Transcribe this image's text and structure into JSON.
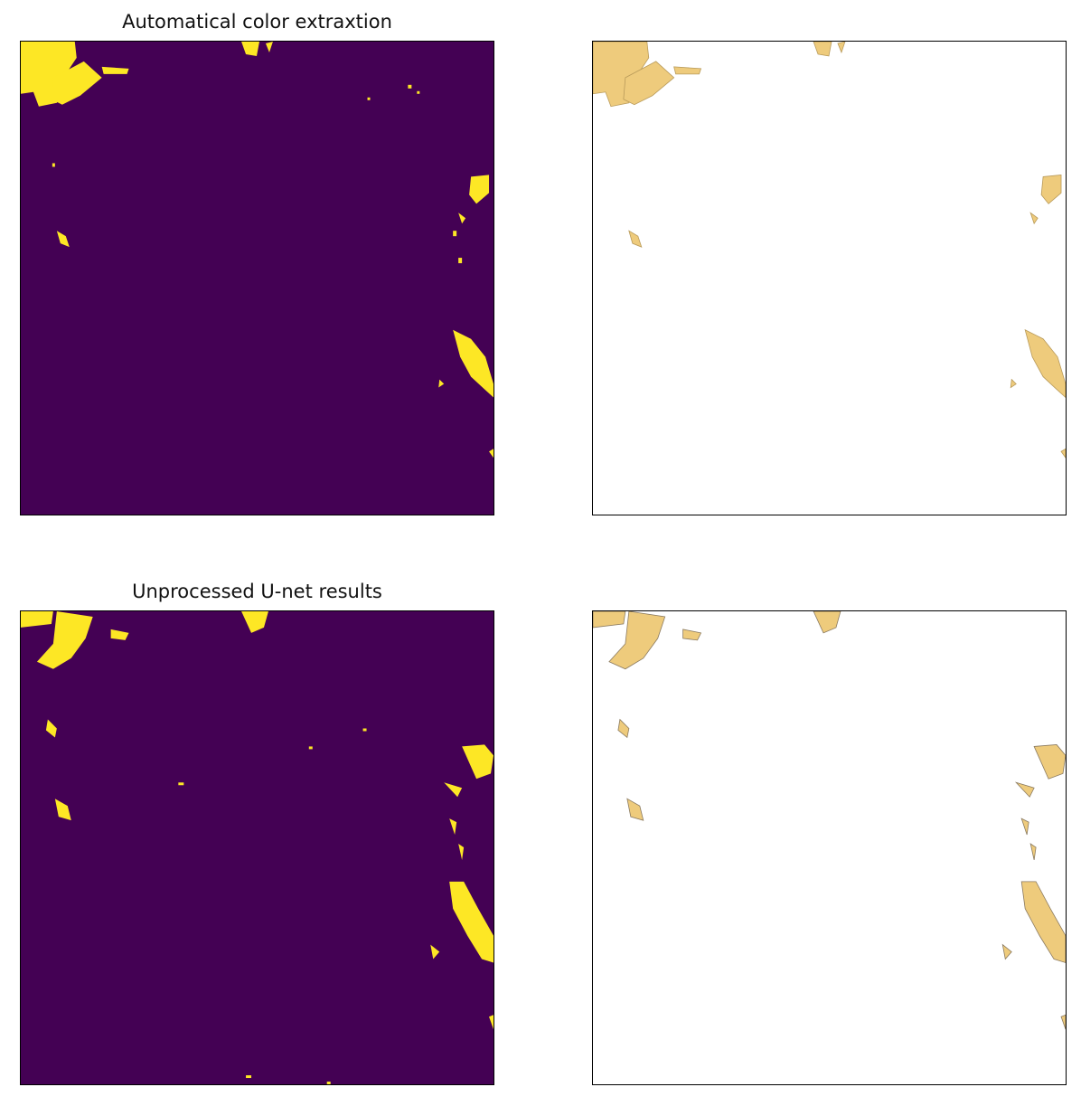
{
  "figure": {
    "panels": [
      {
        "id": "mask-top",
        "title": "Automatical color extraxtion",
        "background": "#440154",
        "fill": "#fde725",
        "stroke": "none"
      },
      {
        "id": "overlay-top",
        "title": "",
        "background": "#ffffff",
        "fill": "#eecb7c",
        "stroke": "#b89a5a"
      },
      {
        "id": "mask-bottom",
        "title": "Unprocessed U-net results",
        "background": "#440154",
        "fill": "#fde725",
        "stroke": "none"
      },
      {
        "id": "overlay-bottom",
        "title": "",
        "background": "#ffffff",
        "fill": "#eecb7c",
        "stroke": "#8a7a60"
      }
    ]
  }
}
